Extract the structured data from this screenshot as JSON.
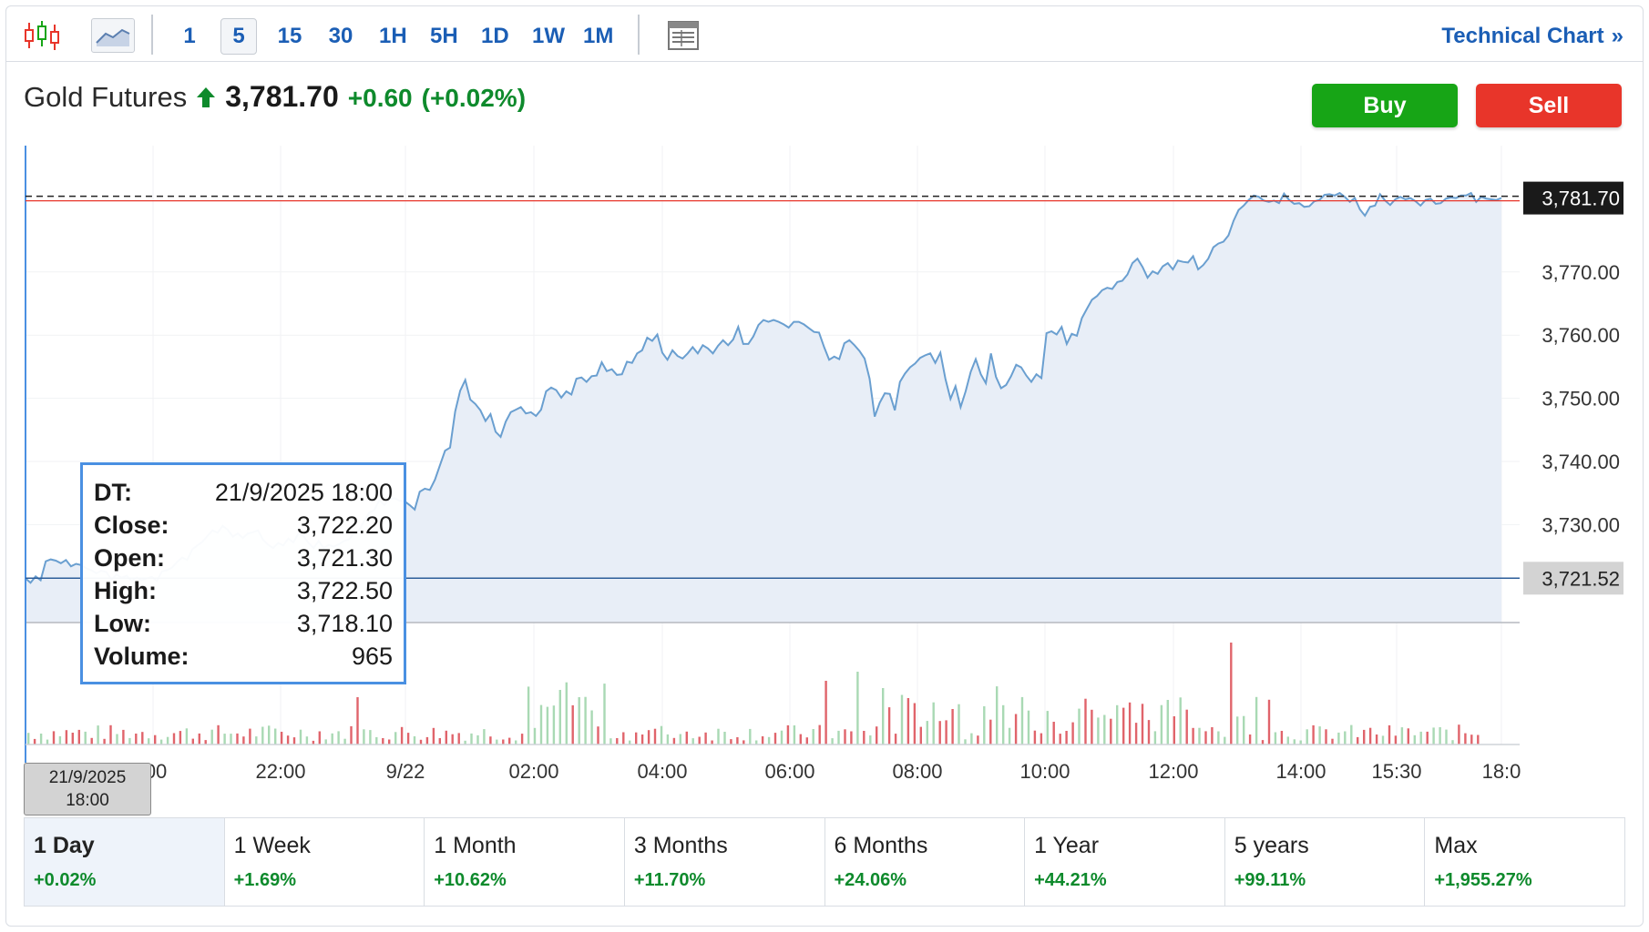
{
  "toolbar": {
    "timeframes": [
      "1",
      "5",
      "15",
      "30",
      "1H",
      "5H",
      "1D",
      "1W",
      "1M"
    ],
    "active_timeframe": "5",
    "technical_link": "Technical Chart",
    "chevron": "»"
  },
  "instrument": {
    "name": "Gold Futures",
    "price": "3,781.70",
    "change": "+0.60",
    "change_pct": "(+0.02%)"
  },
  "actions": {
    "buy": "Buy",
    "sell": "Sell"
  },
  "tooltip": {
    "rows": [
      {
        "key": "DT:",
        "value": "21/9/2025 18:00"
      },
      {
        "key": "Close:",
        "value": "3,722.20"
      },
      {
        "key": "Open:",
        "value": "3,721.30"
      },
      {
        "key": "High:",
        "value": "3,722.50"
      },
      {
        "key": "Low:",
        "value": "3,718.10"
      },
      {
        "key": "Volume:",
        "value": "965"
      }
    ]
  },
  "crosshair_date": {
    "line1": "21/9/2025",
    "line2": "18:00"
  },
  "periods": [
    {
      "label": "1 Day",
      "change": "+0.02%",
      "active": true
    },
    {
      "label": "1 Week",
      "change": "+1.69%"
    },
    {
      "label": "1 Month",
      "change": "+10.62%"
    },
    {
      "label": "3 Months",
      "change": "+11.70%"
    },
    {
      "label": "6 Months",
      "change": "+24.06%"
    },
    {
      "label": "1 Year",
      "change": "+44.21%"
    },
    {
      "label": "5 years",
      "change": "+99.11%"
    },
    {
      "label": "Max",
      "change": "+1,955.27%"
    }
  ],
  "colors": {
    "line": "#6a9fd0",
    "area": "#e8eef7",
    "up": "#0e8a2c",
    "buy": "#17a516",
    "sell": "#e8352a",
    "vol_up": "#a9d9b4",
    "vol_down": "#e0646b",
    "link": "#1b5eb5"
  },
  "chart_data": {
    "type": "area",
    "y_ticks": [
      "3,770.00",
      "3,760.00",
      "3,750.00",
      "3,740.00",
      "3,730.00"
    ],
    "y_tick_values": [
      3770,
      3760,
      3750,
      3740,
      3730
    ],
    "ylim": [
      3714.5,
      3790
    ],
    "x_ticks": [
      ":00",
      "22:00",
      "9/22",
      "02:00",
      "04:00",
      "06:00",
      "08:00",
      "10:00",
      "12:00",
      "14:00",
      "15:30",
      "18:0"
    ],
    "current_price_label": "3,781.70",
    "current_price": 3781.7,
    "crosshair_price_label": "3,721.52",
    "crosshair_price": 3721.52,
    "price_series": [
      3721.5,
      3720.8,
      3721.8,
      3721.2,
      3724.2,
      3724.5,
      3724.3,
      3723.9,
      3724.4,
      3723.4,
      3723.8,
      3723.6,
      3723.1,
      3722.8,
      3722.3,
      3722.7,
      3722.5,
      3721.3,
      3722.1,
      3721.6,
      3721.9,
      3721.1,
      3721.6,
      3721.2,
      3721.5,
      3721.7,
      3721.1,
      3722.6,
      3722.8,
      3723.2,
      3724.1,
      3724.8,
      3724.4,
      3726.1,
      3726.7,
      3727.3,
      3728.2,
      3729.1,
      3728.7,
      3729.8,
      3729.2,
      3728.1,
      3728.6,
      3727.9,
      3728.6,
      3728.8,
      3729.1,
      3727.6,
      3726.8,
      3726.3,
      3727.1,
      3726.7,
      3727.8,
      3727.2,
      3728.6,
      3728.2,
      3727.1,
      3726.3,
      3727.4,
      3726.3,
      3726.8,
      3726.5,
      3726.9,
      3727.4,
      3727.7,
      3728.6,
      3729.1,
      3730.6,
      3731.9,
      3732.3,
      3733.9,
      3733.1,
      3734.1,
      3734.2,
      3733.8,
      3733.7,
      3733.1,
      3732.4,
      3735.2,
      3735.7,
      3735.5,
      3737.1,
      3739.4,
      3741.7,
      3742.2,
      3747.9,
      3751.2,
      3752.9,
      3749.8,
      3749.1,
      3748.1,
      3746.4,
      3747.5,
      3744.7,
      3743.9,
      3746.3,
      3747.8,
      3748.2,
      3748.6,
      3747.6,
      3747.8,
      3747.2,
      3748.2,
      3751.1,
      3751.7,
      3751.3,
      3750.1,
      3751.1,
      3750.6,
      3753.1,
      3753.3,
      3752.6,
      3753.5,
      3753.6,
      3755.7,
      3754.3,
      3754.6,
      3753.7,
      3753.8,
      3755.8,
      3755.6,
      3757.1,
      3757.6,
      3759.6,
      3759.1,
      3760.1,
      3757.2,
      3756.1,
      3757.6,
      3756.7,
      3756.3,
      3757.1,
      3758.1,
      3757.1,
      3758.4,
      3757.9,
      3757.1,
      3758.3,
      3759.2,
      3758.4,
      3759.3,
      3761.3,
      3758.6,
      3758.6,
      3759.8,
      3761.6,
      3762.4,
      3762.1,
      3762.4,
      3762.1,
      3761.7,
      3761.2,
      3762.1,
      3762.1,
      3761.7,
      3761.1,
      3760.5,
      3760.4,
      3758.1,
      3756.1,
      3756.6,
      3756.2,
      3758.7,
      3759.2,
      3758.4,
      3757.5,
      3756.3,
      3753.1,
      3747.1,
      3749.3,
      3750.8,
      3750.7,
      3748.1,
      3752.6,
      3753.9,
      3754.9,
      3755.5,
      3756.4,
      3756.8,
      3757.1,
      3755.6,
      3757.2,
      3753.1,
      3749.9,
      3751.9,
      3748.6,
      3751.1,
      3754.2,
      3756.2,
      3753.8,
      3752.4,
      3757.1,
      3753.4,
      3751.6,
      3752.1,
      3753.5,
      3755.3,
      3754.9,
      3753.6,
      3752.6,
      3753.8,
      3753.2,
      3760.3,
      3760.6,
      3760.1,
      3761.3,
      3758.6,
      3760.2,
      3759.9,
      3762.7,
      3764.2,
      3765.6,
      3766.2,
      3767.1,
      3767.5,
      3767.3,
      3768.4,
      3768.6,
      3769.6,
      3771.4,
      3772.1,
      3770.8,
      3769.1,
      3770.1,
      3769.7,
      3770.9,
      3771.4,
      3770.4,
      3771.8,
      3771.6,
      3771.5,
      3772.5,
      3770.4,
      3771.1,
      3772.1,
      3773.9,
      3774.5,
      3774.8,
      3775.8,
      3778.1,
      3779.8,
      3780.5,
      3781.4,
      3782.1,
      3781.9,
      3781.3,
      3781.1,
      3781.3,
      3780.9,
      3782.4,
      3781.4,
      3780.8,
      3780.9,
      3780.3,
      3780.4,
      3781.2,
      3781.4,
      3782.2,
      3782.3,
      3782.1,
      3782.5,
      3781.9,
      3781.1,
      3781.7,
      3779.9,
      3778.9,
      3780.3,
      3780.5,
      3782.3,
      3781.3,
      3780.6,
      3781.5,
      3781.9,
      3781.5,
      3781.7,
      3781.2,
      3780.5,
      3781.4,
      3781.6,
      3780.8,
      3780.9,
      3781.6,
      3781.8,
      3781.7,
      3782.1,
      3782.1,
      3782.5,
      3781.1,
      3781.9,
      3781.6,
      3781.5,
      3781.4,
      3781.7
    ]
  }
}
